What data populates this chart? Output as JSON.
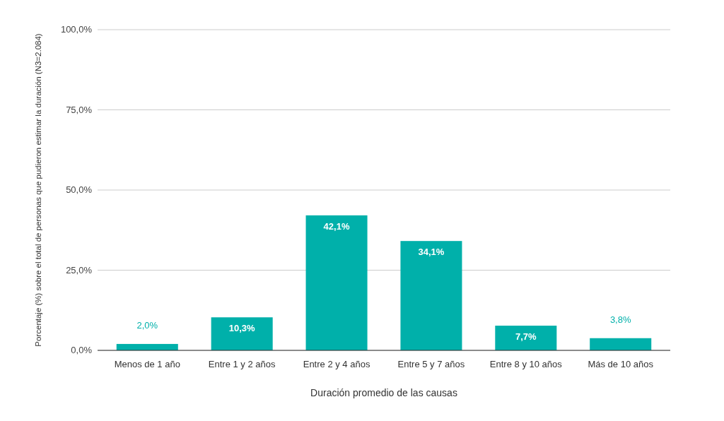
{
  "chart_data": {
    "type": "bar",
    "xlabel": "Duración promedio de las causas",
    "ylabel": "Porcentaje (%) sobre el total de personas que pudieron estimar la duración (N3=2.084)",
    "categories": [
      "Menos de 1 año",
      "Entre 1 y 2 años",
      "Entre 2 y 4 años",
      "Entre 5 y 7 años",
      "Entre 8 y 10 años",
      "Más de 10 años"
    ],
    "values": [
      2.0,
      10.3,
      42.1,
      34.1,
      7.7,
      3.8
    ],
    "value_labels": [
      "2,0%",
      "10,3%",
      "42,1%",
      "34,1%",
      "7,7%",
      "3,8%"
    ],
    "color": "#00b0aa",
    "ylim": [
      0,
      100
    ],
    "yticks": [
      {
        "value": 0,
        "label": "0,0%"
      },
      {
        "value": 25,
        "label": "25,0%"
      },
      {
        "value": 50,
        "label": "50,0%"
      },
      {
        "value": 75,
        "label": "75,0%"
      },
      {
        "value": 100,
        "label": "100,0%"
      }
    ],
    "grid": "y"
  }
}
